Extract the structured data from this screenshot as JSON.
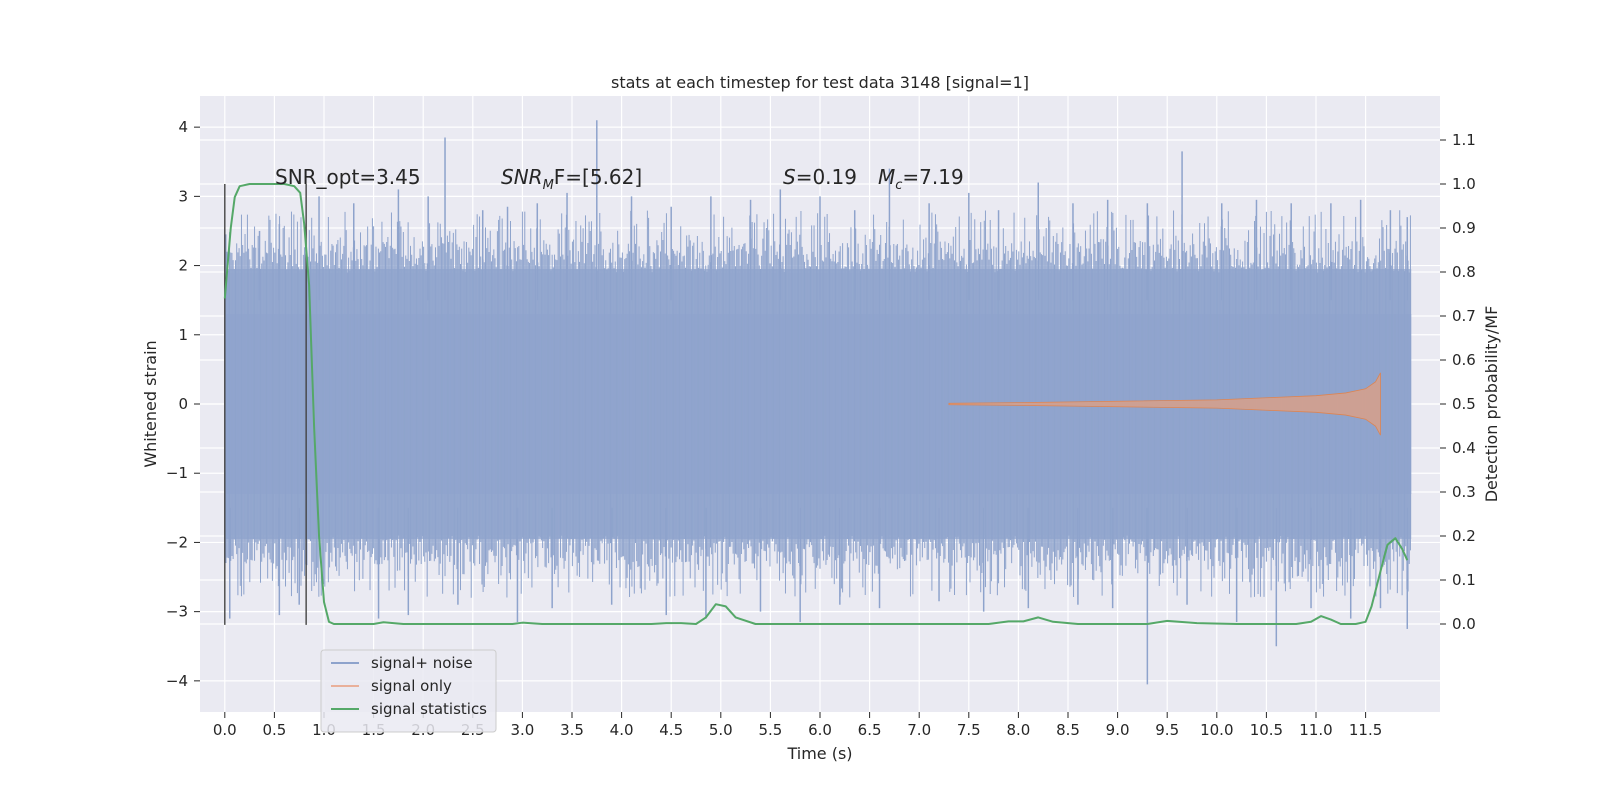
{
  "chart_data": {
    "type": "line",
    "title": "stats at each timestep for test data 3148 [signal=1]",
    "xlabel": "Time (s)",
    "ylabel": "Whitened strain",
    "ylabel_right": "Detection probability/MF",
    "xlim": [
      -0.25,
      12.25
    ],
    "ylim": [
      -4.45,
      4.45
    ],
    "ylim_right": [
      -0.2,
      1.2
    ],
    "x_ticks": [
      "0.0",
      "0.5",
      "1.0",
      "1.5",
      "2.0",
      "2.5",
      "3.0",
      "3.5",
      "4.0",
      "4.5",
      "5.0",
      "5.5",
      "6.0",
      "6.5",
      "7.0",
      "7.5",
      "8.0",
      "8.5",
      "9.0",
      "9.5",
      "10.0",
      "10.5",
      "11.0",
      "11.5"
    ],
    "y_ticks": [
      {
        "value": 4,
        "label": "4"
      },
      {
        "value": 3,
        "label": "3"
      },
      {
        "value": 2,
        "label": "2"
      },
      {
        "value": 1,
        "label": "1"
      },
      {
        "value": 0,
        "label": "0"
      },
      {
        "value": -1,
        "label": "−1"
      },
      {
        "value": -2,
        "label": "−2"
      },
      {
        "value": -3,
        "label": "−3"
      },
      {
        "value": -4,
        "label": "−4"
      }
    ],
    "y_ticks_right": [
      "0.0",
      "0.1",
      "0.2",
      "0.3",
      "0.4",
      "0.5",
      "0.6",
      "0.7",
      "0.8",
      "0.9",
      "1.0",
      "1.1"
    ],
    "grid": true,
    "legend_placement": "lower-left",
    "annotations": {
      "snr_opt": "SNR_opt=3.45",
      "snr_mf_main": "SNR",
      "snr_mf_sub": "M",
      "snr_mf_rest": "F=[5.62]",
      "s_main": "S",
      "s_rest": "=0.19",
      "mc_main": "M",
      "mc_sub": "c",
      "mc_rest": "=7.19"
    },
    "series": [
      {
        "name": "signal+ noise",
        "color": "#8ea3cc",
        "t_start": 0.0,
        "t_end": 11.96,
        "band_bulk": [
          -1.3,
          1.3
        ],
        "band_typical": [
          -1.95,
          1.95
        ],
        "peaks_up": [
          {
            "x": 0.02,
            "y": 2.2
          },
          {
            "x": 0.35,
            "y": 2.5
          },
          {
            "x": 0.55,
            "y": 2.6
          },
          {
            "x": 0.95,
            "y": 3.0
          },
          {
            "x": 1.3,
            "y": 2.9
          },
          {
            "x": 1.75,
            "y": 3.1
          },
          {
            "x": 2.05,
            "y": 3.0
          },
          {
            "x": 2.22,
            "y": 3.85
          },
          {
            "x": 2.6,
            "y": 2.8
          },
          {
            "x": 2.85,
            "y": 2.85
          },
          {
            "x": 3.15,
            "y": 2.9
          },
          {
            "x": 3.45,
            "y": 3.05
          },
          {
            "x": 3.75,
            "y": 4.1
          },
          {
            "x": 4.1,
            "y": 3.0
          },
          {
            "x": 4.5,
            "y": 2.85
          },
          {
            "x": 4.9,
            "y": 3.0
          },
          {
            "x": 5.3,
            "y": 2.95
          },
          {
            "x": 5.6,
            "y": 3.1
          },
          {
            "x": 6.0,
            "y": 3.0
          },
          {
            "x": 6.35,
            "y": 2.8
          },
          {
            "x": 6.7,
            "y": 3.4
          },
          {
            "x": 7.1,
            "y": 2.9
          },
          {
            "x": 7.5,
            "y": 3.05
          },
          {
            "x": 7.8,
            "y": 2.8
          },
          {
            "x": 8.2,
            "y": 3.2
          },
          {
            "x": 8.55,
            "y": 2.9
          },
          {
            "x": 8.9,
            "y": 2.95
          },
          {
            "x": 9.3,
            "y": 2.9
          },
          {
            "x": 9.65,
            "y": 3.65
          },
          {
            "x": 10.05,
            "y": 2.9
          },
          {
            "x": 10.4,
            "y": 2.95
          },
          {
            "x": 10.75,
            "y": 2.9
          },
          {
            "x": 11.15,
            "y": 2.9
          },
          {
            "x": 11.45,
            "y": 2.95
          },
          {
            "x": 11.75,
            "y": 2.8
          },
          {
            "x": 11.92,
            "y": 2.7
          }
        ],
        "peaks_down": [
          {
            "x": 0.05,
            "y": -3.1
          },
          {
            "x": 0.55,
            "y": -3.05
          },
          {
            "x": 0.75,
            "y": -2.9
          },
          {
            "x": 1.55,
            "y": -3.1
          },
          {
            "x": 1.85,
            "y": -3.05
          },
          {
            "x": 2.35,
            "y": -2.9
          },
          {
            "x": 2.95,
            "y": -3.15
          },
          {
            "x": 3.3,
            "y": -2.95
          },
          {
            "x": 3.9,
            "y": -2.9
          },
          {
            "x": 4.45,
            "y": -3.05
          },
          {
            "x": 4.85,
            "y": -3.1
          },
          {
            "x": 5.4,
            "y": -3.0
          },
          {
            "x": 5.8,
            "y": -3.15
          },
          {
            "x": 6.2,
            "y": -2.9
          },
          {
            "x": 6.6,
            "y": -2.95
          },
          {
            "x": 7.2,
            "y": -2.85
          },
          {
            "x": 7.65,
            "y": -3.0
          },
          {
            "x": 8.1,
            "y": -2.95
          },
          {
            "x": 8.6,
            "y": -2.9
          },
          {
            "x": 8.95,
            "y": -2.95
          },
          {
            "x": 9.3,
            "y": -4.05
          },
          {
            "x": 9.7,
            "y": -2.9
          },
          {
            "x": 10.2,
            "y": -3.15
          },
          {
            "x": 10.6,
            "y": -3.5
          },
          {
            "x": 10.95,
            "y": -2.95
          },
          {
            "x": 11.35,
            "y": -3.1
          },
          {
            "x": 11.65,
            "y": -2.95
          },
          {
            "x": 11.92,
            "y": -3.25
          }
        ]
      },
      {
        "name": "signal only",
        "color": "#dd8452",
        "t_start": 7.3,
        "t_end": 11.65,
        "envelope": [
          {
            "x": 7.3,
            "y": 0.01
          },
          {
            "x": 8.0,
            "y": 0.02
          },
          {
            "x": 9.0,
            "y": 0.04
          },
          {
            "x": 10.0,
            "y": 0.06
          },
          {
            "x": 10.5,
            "y": 0.09
          },
          {
            "x": 11.0,
            "y": 0.12
          },
          {
            "x": 11.3,
            "y": 0.16
          },
          {
            "x": 11.5,
            "y": 0.22
          },
          {
            "x": 11.6,
            "y": 0.32
          },
          {
            "x": 11.65,
            "y": 0.45
          }
        ]
      },
      {
        "name": "signal statistics",
        "color": "#55a868",
        "x": [
          0.0,
          0.03,
          0.06,
          0.1,
          0.15,
          0.25,
          0.4,
          0.6,
          0.7,
          0.76,
          0.8,
          0.85,
          0.9,
          0.95,
          1.0,
          1.05,
          1.1,
          1.2,
          1.5,
          1.6,
          1.8,
          2.5,
          2.9,
          3.0,
          3.2,
          4.0,
          4.3,
          4.45,
          4.6,
          4.75,
          4.85,
          4.95,
          5.05,
          5.15,
          5.35,
          5.6,
          6.0,
          7.0,
          7.7,
          7.9,
          8.05,
          8.2,
          8.35,
          8.6,
          9.0,
          9.3,
          9.5,
          9.8,
          10.2,
          10.8,
          10.95,
          11.05,
          11.15,
          11.25,
          11.4,
          11.5,
          11.56,
          11.65,
          11.72,
          11.8,
          11.87,
          11.92
        ],
        "y": [
          0.74,
          0.82,
          0.9,
          0.97,
          0.995,
          1.0,
          1.0,
          1.0,
          0.995,
          0.98,
          0.91,
          0.77,
          0.45,
          0.2,
          0.05,
          0.005,
          0.0,
          0.0,
          0.0,
          0.004,
          0.0,
          0.0,
          0.0,
          0.003,
          0.0,
          0.0,
          0.0,
          0.002,
          0.002,
          0.0,
          0.015,
          0.045,
          0.04,
          0.015,
          0.0,
          0.0,
          0.0,
          0.0,
          0.0,
          0.006,
          0.006,
          0.015,
          0.005,
          0.0,
          0.0,
          0.0,
          0.007,
          0.002,
          0.0,
          0.0,
          0.005,
          0.018,
          0.01,
          0.0,
          0.0,
          0.005,
          0.04,
          0.12,
          0.18,
          0.195,
          0.17,
          0.145
        ]
      }
    ],
    "vertical_markers": [
      {
        "x": 0.0,
        "y_right": [
          -0.002,
          1.0
        ]
      },
      {
        "x": 0.82,
        "y_right": [
          -0.002,
          1.0
        ]
      }
    ]
  }
}
